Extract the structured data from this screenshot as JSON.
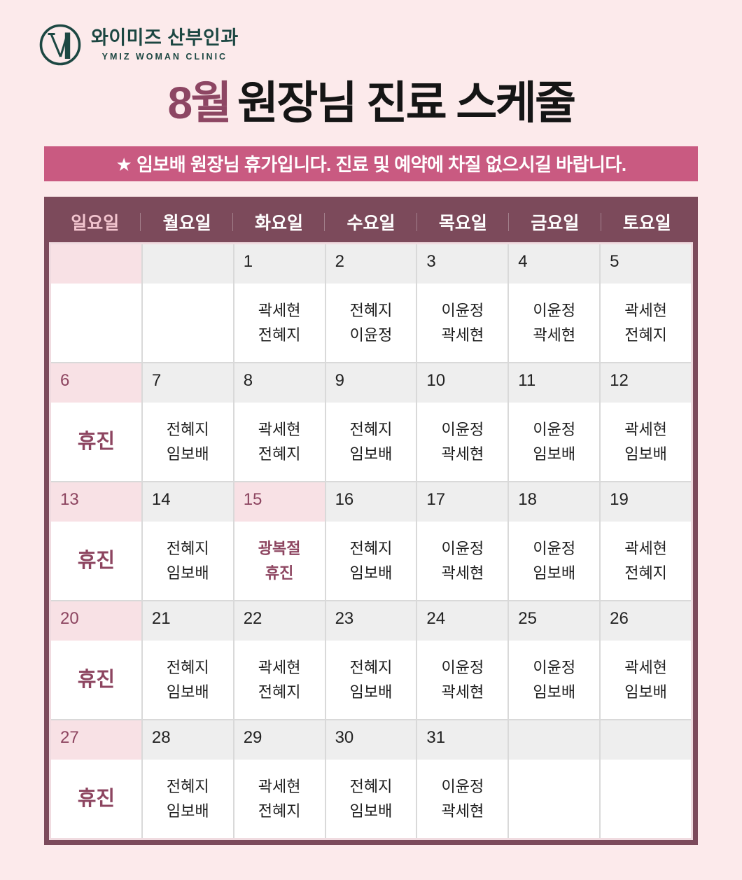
{
  "logo": {
    "clinic_name": "와이미즈 산부인과",
    "clinic_subtitle": "YMIZ WOMAN CLINIC"
  },
  "title": {
    "month": "8월",
    "rest": "원장님 진료 스케줄"
  },
  "notice": {
    "text": "★ 임보배 원장님 휴가입니다. 진료 및 예약에 차질 없으시길 바랍니다."
  },
  "colors": {
    "page_bg": "#fceaeb",
    "logo_teal": "#1c4742",
    "title_accent": "#8d4663",
    "banner_bg": "#c95a81",
    "header_bg": "#7c4a5b",
    "sunday_label": "#f3c5cf",
    "sunday_band": "#f8e1e5",
    "weekday_band": "#eeeeee",
    "maroon_text": "#8d4560"
  },
  "calendar": {
    "weekdays": [
      "일요일",
      "월요일",
      "화요일",
      "수요일",
      "목요일",
      "금요일",
      "토요일"
    ],
    "weeks": [
      [
        {
          "date": "",
          "band": "pink"
        },
        {
          "date": "",
          "band": "gray"
        },
        {
          "date": "1",
          "band": "gray",
          "lines": [
            "곽세현",
            "전혜지"
          ]
        },
        {
          "date": "2",
          "band": "gray",
          "lines": [
            "전혜지",
            "이윤정"
          ]
        },
        {
          "date": "3",
          "band": "gray",
          "lines": [
            "이윤정",
            "곽세현"
          ]
        },
        {
          "date": "4",
          "band": "gray",
          "lines": [
            "이윤정",
            "곽세현"
          ]
        },
        {
          "date": "5",
          "band": "gray",
          "lines": [
            "곽세현",
            "전혜지"
          ]
        }
      ],
      [
        {
          "date": "6",
          "band": "pink",
          "date_style": "maroon",
          "lines": [
            "휴진"
          ],
          "line_style": "closed"
        },
        {
          "date": "7",
          "band": "gray",
          "lines": [
            "전혜지",
            "임보배"
          ]
        },
        {
          "date": "8",
          "band": "gray",
          "lines": [
            "곽세현",
            "전혜지"
          ]
        },
        {
          "date": "9",
          "band": "gray",
          "lines": [
            "전혜지",
            "임보배"
          ]
        },
        {
          "date": "10",
          "band": "gray",
          "lines": [
            "이윤정",
            "곽세현"
          ]
        },
        {
          "date": "11",
          "band": "gray",
          "lines": [
            "이윤정",
            "임보배"
          ]
        },
        {
          "date": "12",
          "band": "gray",
          "lines": [
            "곽세현",
            "임보배"
          ]
        }
      ],
      [
        {
          "date": "13",
          "band": "pink",
          "date_style": "maroon",
          "lines": [
            "휴진"
          ],
          "line_style": "closed"
        },
        {
          "date": "14",
          "band": "gray",
          "lines": [
            "전혜지",
            "임보배"
          ]
        },
        {
          "date": "15",
          "band": "pink",
          "date_style": "maroon",
          "lines": [
            "광복절",
            "휴진"
          ],
          "line_style": "maroon"
        },
        {
          "date": "16",
          "band": "gray",
          "lines": [
            "전혜지",
            "임보배"
          ]
        },
        {
          "date": "17",
          "band": "gray",
          "lines": [
            "이윤정",
            "곽세현"
          ]
        },
        {
          "date": "18",
          "band": "gray",
          "lines": [
            "이윤정",
            "임보배"
          ]
        },
        {
          "date": "19",
          "band": "gray",
          "lines": [
            "곽세현",
            "전혜지"
          ]
        }
      ],
      [
        {
          "date": "20",
          "band": "pink",
          "date_style": "maroon",
          "lines": [
            "휴진"
          ],
          "line_style": "closed"
        },
        {
          "date": "21",
          "band": "gray",
          "lines": [
            "전혜지",
            "임보배"
          ]
        },
        {
          "date": "22",
          "band": "gray",
          "lines": [
            "곽세현",
            "전혜지"
          ]
        },
        {
          "date": "23",
          "band": "gray",
          "lines": [
            "전혜지",
            "임보배"
          ]
        },
        {
          "date": "24",
          "band": "gray",
          "lines": [
            "이윤정",
            "곽세현"
          ]
        },
        {
          "date": "25",
          "band": "gray",
          "lines": [
            "이윤정",
            "임보배"
          ]
        },
        {
          "date": "26",
          "band": "gray",
          "lines": [
            "곽세현",
            "임보배"
          ]
        }
      ],
      [
        {
          "date": "27",
          "band": "pink",
          "date_style": "maroon",
          "lines": [
            "휴진"
          ],
          "line_style": "closed"
        },
        {
          "date": "28",
          "band": "gray",
          "lines": [
            "전혜지",
            "임보배"
          ]
        },
        {
          "date": "29",
          "band": "gray",
          "lines": [
            "곽세현",
            "전혜지"
          ]
        },
        {
          "date": "30",
          "band": "gray",
          "lines": [
            "전혜지",
            "임보배"
          ]
        },
        {
          "date": "31",
          "band": "gray",
          "lines": [
            "이윤정",
            "곽세현"
          ]
        },
        {
          "date": "",
          "band": "gray"
        },
        {
          "date": "",
          "band": "gray"
        }
      ]
    ]
  }
}
